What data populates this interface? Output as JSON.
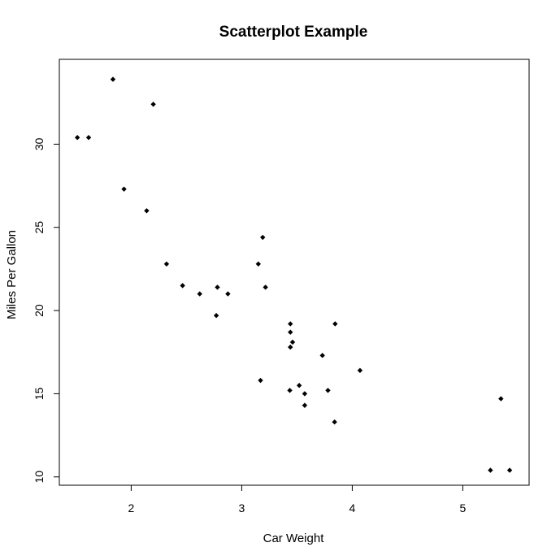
{
  "chart_data": {
    "type": "scatter",
    "title": "Scatterplot Example",
    "xlabel": "Car Weight",
    "ylabel": "Miles Per Gallon",
    "xlim": [
      1.35,
      5.6
    ],
    "ylim": [
      9.5,
      35.1
    ],
    "xticks": [
      2,
      3,
      4,
      5
    ],
    "yticks": [
      10,
      15,
      20,
      25,
      30
    ],
    "grid": false,
    "colors": {
      "points": "#000000",
      "frame": "#000000",
      "background": "#ffffff"
    },
    "points": [
      {
        "x": 1.513,
        "y": 30.4
      },
      {
        "x": 1.615,
        "y": 30.4
      },
      {
        "x": 1.835,
        "y": 33.9
      },
      {
        "x": 1.935,
        "y": 27.3
      },
      {
        "x": 2.14,
        "y": 26.0
      },
      {
        "x": 2.2,
        "y": 32.4
      },
      {
        "x": 2.32,
        "y": 22.8
      },
      {
        "x": 2.465,
        "y": 21.5
      },
      {
        "x": 2.62,
        "y": 21.0
      },
      {
        "x": 2.77,
        "y": 19.7
      },
      {
        "x": 2.78,
        "y": 21.4
      },
      {
        "x": 2.875,
        "y": 21.0
      },
      {
        "x": 3.15,
        "y": 22.8
      },
      {
        "x": 3.17,
        "y": 15.8
      },
      {
        "x": 3.19,
        "y": 24.4
      },
      {
        "x": 3.215,
        "y": 21.4
      },
      {
        "x": 3.435,
        "y": 15.2
      },
      {
        "x": 3.44,
        "y": 18.7
      },
      {
        "x": 3.44,
        "y": 19.2
      },
      {
        "x": 3.44,
        "y": 17.8
      },
      {
        "x": 3.46,
        "y": 18.1
      },
      {
        "x": 3.52,
        "y": 15.5
      },
      {
        "x": 3.57,
        "y": 15.0
      },
      {
        "x": 3.57,
        "y": 14.3
      },
      {
        "x": 3.73,
        "y": 17.3
      },
      {
        "x": 3.78,
        "y": 15.2
      },
      {
        "x": 3.84,
        "y": 13.3
      },
      {
        "x": 3.845,
        "y": 19.2
      },
      {
        "x": 4.07,
        "y": 16.4
      },
      {
        "x": 5.25,
        "y": 10.4
      },
      {
        "x": 5.345,
        "y": 14.7
      },
      {
        "x": 5.424,
        "y": 10.4
      }
    ]
  }
}
